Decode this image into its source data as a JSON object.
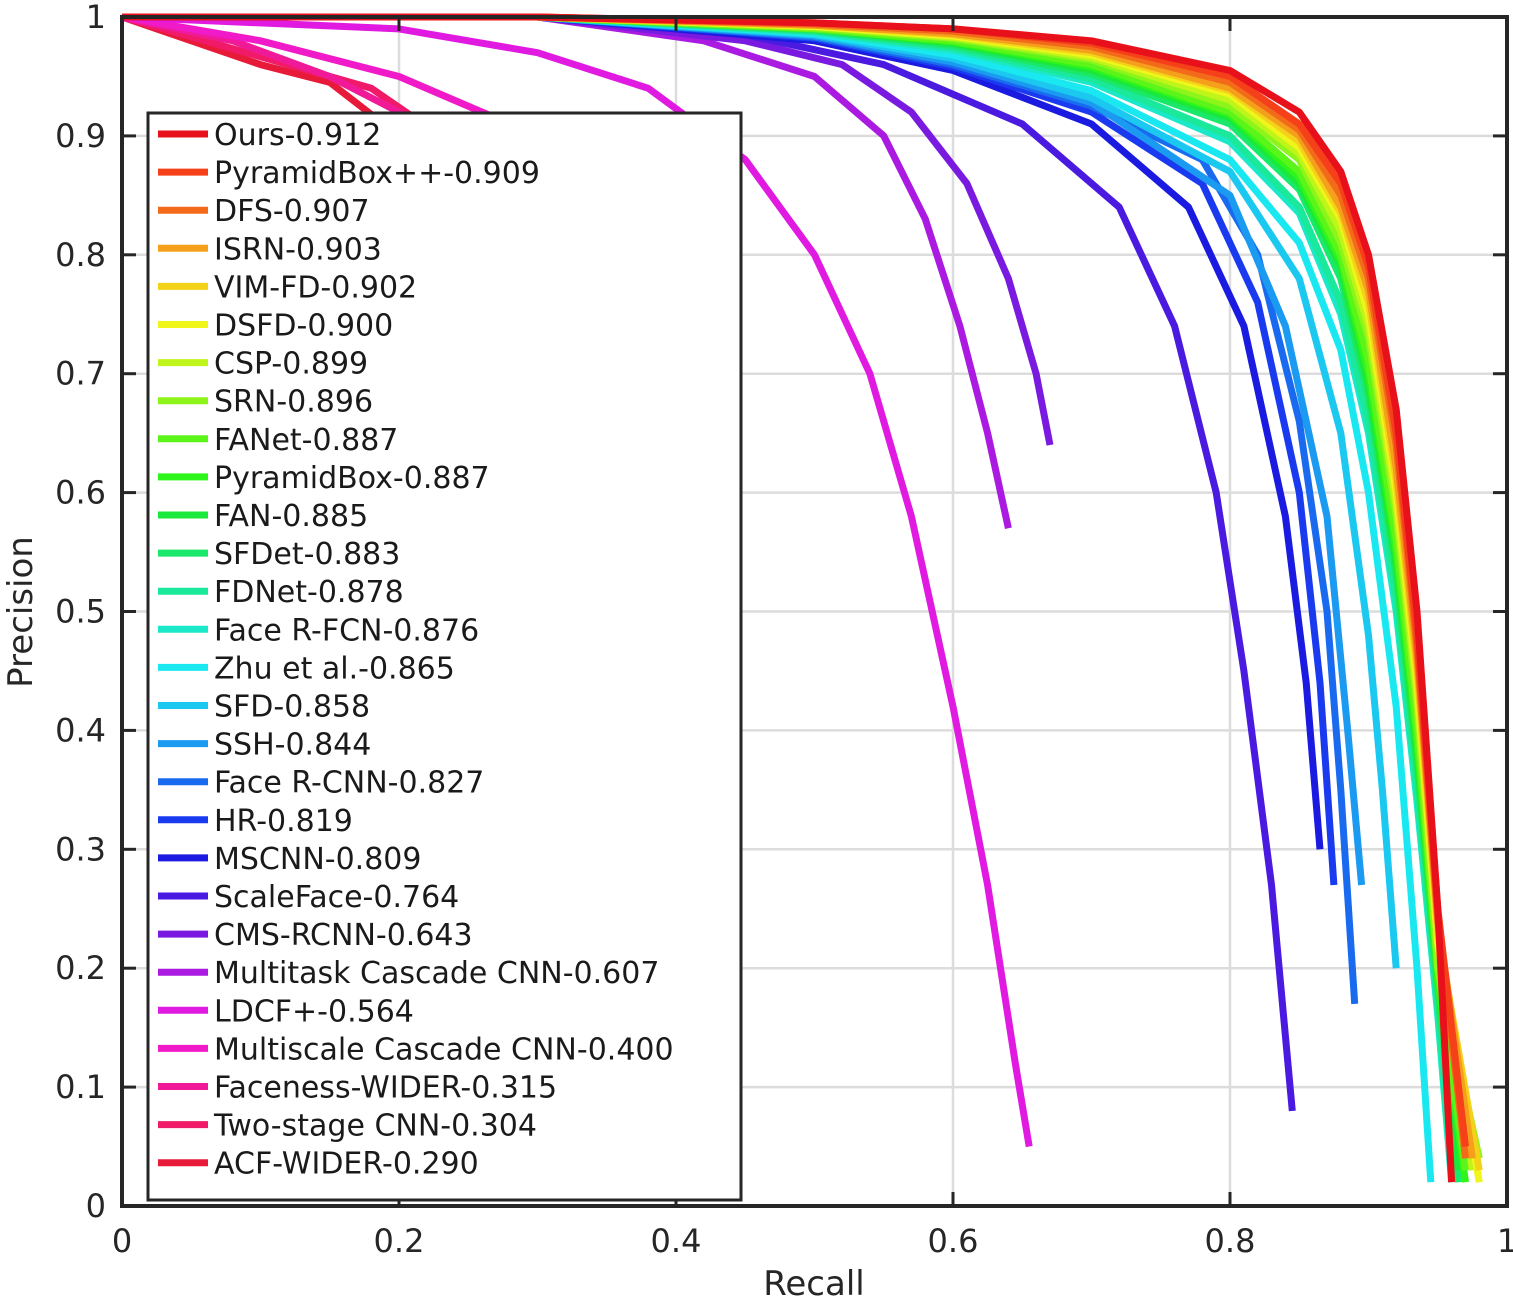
{
  "chart_data": {
    "type": "line",
    "title": "",
    "xlabel": "Recall",
    "ylabel": "Precision",
    "xlim": [
      0,
      1
    ],
    "ylim": [
      0,
      1
    ],
    "xticks": [
      "0",
      "0.2",
      "0.4",
      "0.6",
      "0.8",
      "1"
    ],
    "yticks": [
      "0",
      "0.1",
      "0.2",
      "0.3",
      "0.4",
      "0.5",
      "0.6",
      "0.7",
      "0.8",
      "0.9",
      "1"
    ],
    "grid": true,
    "legend_position": "left",
    "series": [
      {
        "name": "Ours-0.912",
        "color": "#e8101a",
        "x": [
          0,
          0.3,
          0.5,
          0.6,
          0.7,
          0.8,
          0.85,
          0.88,
          0.9,
          0.92,
          0.935,
          0.95,
          0.96
        ],
        "y": [
          1,
          1,
          0.995,
          0.99,
          0.98,
          0.955,
          0.92,
          0.87,
          0.8,
          0.67,
          0.5,
          0.25,
          0.02
        ]
      },
      {
        "name": "PyramidBox++-0.909",
        "color": "#f5401a",
        "x": [
          0,
          0.3,
          0.5,
          0.6,
          0.7,
          0.8,
          0.85,
          0.88,
          0.9,
          0.92,
          0.935,
          0.95,
          0.97
        ],
        "y": [
          1,
          1,
          0.995,
          0.99,
          0.978,
          0.95,
          0.91,
          0.86,
          0.79,
          0.65,
          0.48,
          0.25,
          0.05
        ]
      },
      {
        "name": "DFS-0.907",
        "color": "#f36a1a",
        "x": [
          0,
          0.3,
          0.5,
          0.6,
          0.7,
          0.8,
          0.85,
          0.88,
          0.9,
          0.92,
          0.935,
          0.95,
          0.97
        ],
        "y": [
          1,
          1,
          0.994,
          0.988,
          0.975,
          0.945,
          0.905,
          0.85,
          0.78,
          0.64,
          0.47,
          0.24,
          0.04
        ]
      },
      {
        "name": "ISRN-0.903",
        "color": "#f5a01a",
        "x": [
          0,
          0.3,
          0.5,
          0.6,
          0.7,
          0.8,
          0.85,
          0.88,
          0.9,
          0.92,
          0.935,
          0.95,
          0.975
        ],
        "y": [
          1,
          1,
          0.993,
          0.986,
          0.972,
          0.94,
          0.9,
          0.84,
          0.77,
          0.62,
          0.46,
          0.24,
          0.04
        ]
      },
      {
        "name": "VIM-FD-0.902",
        "color": "#f5d21a",
        "x": [
          0,
          0.3,
          0.5,
          0.6,
          0.7,
          0.8,
          0.85,
          0.88,
          0.9,
          0.92,
          0.935,
          0.95,
          0.98
        ],
        "y": [
          1,
          1,
          0.993,
          0.985,
          0.97,
          0.938,
          0.895,
          0.835,
          0.76,
          0.61,
          0.45,
          0.23,
          0.03
        ]
      },
      {
        "name": "DSFD-0.900",
        "color": "#f0f51a",
        "x": [
          0,
          0.3,
          0.5,
          0.6,
          0.7,
          0.8,
          0.85,
          0.88,
          0.9,
          0.92,
          0.935,
          0.95,
          0.98
        ],
        "y": [
          1,
          1,
          0.992,
          0.984,
          0.968,
          0.935,
          0.89,
          0.83,
          0.75,
          0.6,
          0.44,
          0.22,
          0.02
        ]
      },
      {
        "name": "CSP-0.899",
        "color": "#c0f51a",
        "x": [
          0,
          0.3,
          0.5,
          0.6,
          0.7,
          0.8,
          0.85,
          0.88,
          0.9,
          0.92,
          0.935,
          0.95,
          0.975
        ],
        "y": [
          1,
          1,
          0.992,
          0.983,
          0.966,
          0.93,
          0.885,
          0.82,
          0.74,
          0.59,
          0.43,
          0.22,
          0.03
        ]
      },
      {
        "name": "SRN-0.896",
        "color": "#8ef51a",
        "x": [
          0,
          0.3,
          0.5,
          0.6,
          0.7,
          0.8,
          0.85,
          0.88,
          0.9,
          0.92,
          0.935,
          0.95,
          0.98
        ],
        "y": [
          1,
          1,
          0.991,
          0.982,
          0.964,
          0.925,
          0.88,
          0.81,
          0.73,
          0.58,
          0.42,
          0.2,
          0.04
        ]
      },
      {
        "name": "FANet-0.887",
        "color": "#5cf51a",
        "x": [
          0,
          0.3,
          0.5,
          0.6,
          0.7,
          0.8,
          0.85,
          0.88,
          0.9,
          0.92,
          0.935,
          0.95,
          0.97
        ],
        "y": [
          1,
          1,
          0.99,
          0.98,
          0.96,
          0.92,
          0.87,
          0.8,
          0.71,
          0.56,
          0.4,
          0.2,
          0.03
        ]
      },
      {
        "name": "PyramidBox-0.887",
        "color": "#2ef51a",
        "x": [
          0,
          0.3,
          0.5,
          0.6,
          0.7,
          0.8,
          0.85,
          0.88,
          0.9,
          0.92,
          0.935,
          0.95,
          0.97
        ],
        "y": [
          1,
          1,
          0.99,
          0.979,
          0.958,
          0.918,
          0.865,
          0.795,
          0.7,
          0.55,
          0.39,
          0.19,
          0.02
        ]
      },
      {
        "name": "FAN-0.885",
        "color": "#1ae83a",
        "x": [
          0,
          0.3,
          0.5,
          0.6,
          0.7,
          0.8,
          0.85,
          0.88,
          0.9,
          0.92,
          0.935,
          0.95,
          0.965
        ],
        "y": [
          1,
          1,
          0.99,
          0.978,
          0.955,
          0.915,
          0.86,
          0.79,
          0.69,
          0.54,
          0.38,
          0.19,
          0.03
        ]
      },
      {
        "name": "SFDet-0.883",
        "color": "#1ae86a",
        "x": [
          0,
          0.3,
          0.5,
          0.6,
          0.7,
          0.8,
          0.85,
          0.88,
          0.9,
          0.92,
          0.935,
          0.95,
          0.965
        ],
        "y": [
          1,
          1,
          0.989,
          0.976,
          0.952,
          0.91,
          0.855,
          0.78,
          0.68,
          0.53,
          0.37,
          0.18,
          0.02
        ]
      },
      {
        "name": "FDNet-0.878",
        "color": "#1ae89a",
        "x": [
          0,
          0.3,
          0.5,
          0.6,
          0.7,
          0.8,
          0.85,
          0.88,
          0.9,
          0.92,
          0.935,
          0.95,
          0.96
        ],
        "y": [
          1,
          1,
          0.988,
          0.974,
          0.948,
          0.9,
          0.84,
          0.76,
          0.66,
          0.51,
          0.35,
          0.17,
          0.03
        ]
      },
      {
        "name": "Face R-FCN-0.876",
        "color": "#1ae8c8",
        "x": [
          0,
          0.3,
          0.5,
          0.6,
          0.7,
          0.8,
          0.85,
          0.88,
          0.9,
          0.92,
          0.935,
          0.95,
          0.96
        ],
        "y": [
          1,
          1,
          0.987,
          0.972,
          0.945,
          0.895,
          0.835,
          0.75,
          0.65,
          0.5,
          0.34,
          0.16,
          0.02
        ]
      },
      {
        "name": "Zhu et al.-0.865",
        "color": "#1ae8f0",
        "x": [
          0,
          0.3,
          0.5,
          0.6,
          0.7,
          0.8,
          0.85,
          0.88,
          0.9,
          0.92,
          0.935,
          0.945
        ],
        "y": [
          1,
          1,
          0.986,
          0.968,
          0.938,
          0.88,
          0.81,
          0.72,
          0.6,
          0.42,
          0.2,
          0.02
        ]
      },
      {
        "name": "SFD-0.858",
        "color": "#1ac8f0",
        "x": [
          0,
          0.3,
          0.5,
          0.6,
          0.7,
          0.8,
          0.85,
          0.88,
          0.9,
          0.91,
          0.92
        ],
        "y": [
          1,
          1,
          0.985,
          0.965,
          0.932,
          0.87,
          0.78,
          0.65,
          0.48,
          0.35,
          0.2
        ]
      },
      {
        "name": "SSH-0.844",
        "color": "#1a9af0",
        "x": [
          0,
          0.3,
          0.5,
          0.6,
          0.7,
          0.8,
          0.84,
          0.87,
          0.885,
          0.895
        ],
        "y": [
          1,
          1,
          0.984,
          0.962,
          0.928,
          0.85,
          0.74,
          0.58,
          0.4,
          0.27
        ]
      },
      {
        "name": "Face R-CNN-0.827",
        "color": "#1a6af0",
        "x": [
          0,
          0.3,
          0.5,
          0.6,
          0.7,
          0.78,
          0.82,
          0.85,
          0.87,
          0.88,
          0.89
        ],
        "y": [
          1,
          1,
          0.983,
          0.96,
          0.925,
          0.88,
          0.8,
          0.66,
          0.5,
          0.35,
          0.17
        ]
      },
      {
        "name": "HR-0.819",
        "color": "#1a3af0",
        "x": [
          0,
          0.3,
          0.5,
          0.6,
          0.7,
          0.78,
          0.82,
          0.85,
          0.865,
          0.875
        ],
        "y": [
          1,
          1,
          0.982,
          0.958,
          0.92,
          0.86,
          0.76,
          0.6,
          0.44,
          0.27
        ]
      },
      {
        "name": "MSCNN-0.809",
        "color": "#1a1ae0",
        "x": [
          0,
          0.3,
          0.5,
          0.6,
          0.7,
          0.77,
          0.81,
          0.84,
          0.855,
          0.865
        ],
        "y": [
          1,
          1,
          0.98,
          0.955,
          0.91,
          0.84,
          0.74,
          0.58,
          0.44,
          0.3
        ]
      },
      {
        "name": "ScaleFace-0.764",
        "color": "#4a1ae0",
        "x": [
          0,
          0.3,
          0.45,
          0.55,
          0.65,
          0.72,
          0.76,
          0.79,
          0.81,
          0.83,
          0.845
        ],
        "y": [
          1,
          1,
          0.985,
          0.96,
          0.91,
          0.84,
          0.74,
          0.6,
          0.45,
          0.27,
          0.08
        ]
      },
      {
        "name": "CMS-RCNN-0.643",
        "color": "#7a1ae0",
        "x": [
          0,
          0.3,
          0.45,
          0.52,
          0.57,
          0.61,
          0.64,
          0.66,
          0.67
        ],
        "y": [
          1,
          1,
          0.98,
          0.96,
          0.92,
          0.86,
          0.78,
          0.7,
          0.64
        ]
      },
      {
        "name": "Multitask Cascade CNN-0.607",
        "color": "#aa1ae0",
        "x": [
          0,
          0.3,
          0.42,
          0.5,
          0.55,
          0.58,
          0.605,
          0.625,
          0.64
        ],
        "y": [
          1,
          1,
          0.98,
          0.95,
          0.9,
          0.83,
          0.74,
          0.65,
          0.57
        ]
      },
      {
        "name": "LDCF+-0.564",
        "color": "#e01ae0",
        "x": [
          0,
          0.2,
          0.3,
          0.38,
          0.45,
          0.5,
          0.54,
          0.57,
          0.6,
          0.625,
          0.645,
          0.655
        ],
        "y": [
          1,
          0.99,
          0.97,
          0.94,
          0.88,
          0.8,
          0.7,
          0.58,
          0.42,
          0.27,
          0.12,
          0.05
        ]
      },
      {
        "name": "Multiscale Cascade CNN-0.400",
        "color": "#f01ac8",
        "x": [
          0,
          0.1,
          0.2,
          0.26,
          0.3
        ],
        "y": [
          1,
          0.98,
          0.95,
          0.92,
          0.9
        ]
      },
      {
        "name": "Faceness-WIDER-0.315",
        "color": "#f01a98",
        "x": [
          0,
          0.08,
          0.15,
          0.2,
          0.25
        ],
        "y": [
          1,
          0.98,
          0.95,
          0.92,
          0.88
        ]
      },
      {
        "name": "Two-stage CNN-0.304",
        "color": "#f01a68",
        "x": [
          0,
          0.06,
          0.12,
          0.18,
          0.23
        ],
        "y": [
          1,
          0.98,
          0.96,
          0.94,
          0.9
        ]
      },
      {
        "name": "ACF-WIDER-0.290",
        "color": "#e81a3a",
        "x": [
          0,
          0.05,
          0.1,
          0.15,
          0.2
        ],
        "y": [
          1,
          0.98,
          0.96,
          0.945,
          0.9
        ]
      }
    ]
  }
}
